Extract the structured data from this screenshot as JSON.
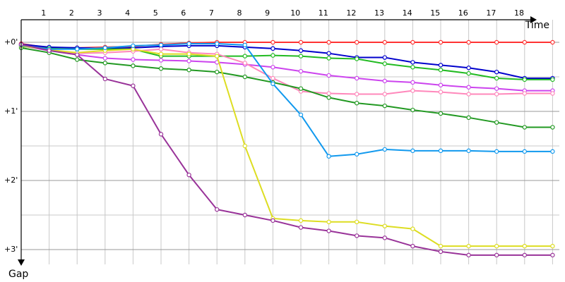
{
  "chart_data": {
    "type": "line",
    "xlabel": "Time",
    "ylabel": "Gap",
    "x_ticks": [
      "1",
      "2",
      "3",
      "4",
      "5",
      "6",
      "7",
      "8",
      "9",
      "10",
      "11",
      "12",
      "13",
      "14",
      "15",
      "16",
      "17",
      "18"
    ],
    "y_ticks": [
      "+0'",
      "+1'",
      "+2'",
      "+3'"
    ],
    "ylim": [
      0,
      3.2
    ],
    "xlim": [
      0,
      19.2
    ],
    "grid": true,
    "series": [
      {
        "color": "#ff3333",
        "x": [
          0,
          1,
          2,
          3,
          4,
          5,
          6,
          7,
          8,
          9,
          10,
          11,
          12,
          13,
          14,
          15,
          16,
          17,
          18,
          19
        ],
        "y": [
          0.02,
          0.08,
          0.08,
          0.07,
          0.06,
          0.03,
          0.01,
          0,
          0,
          0,
          0,
          0,
          0,
          0,
          0,
          0,
          0,
          0,
          0,
          0
        ]
      },
      {
        "color": "#0000cc",
        "x": [
          0,
          1,
          2,
          3,
          4,
          5,
          6,
          7,
          8,
          9,
          10,
          11,
          12,
          13,
          14,
          15,
          16,
          17,
          18,
          19
        ],
        "y": [
          0.03,
          0.07,
          0.08,
          0.09,
          0.08,
          0.06,
          0.05,
          0.05,
          0.07,
          0.09,
          0.12,
          0.16,
          0.22,
          0.22,
          0.29,
          0.33,
          0.37,
          0.43,
          0.52,
          0.52
        ]
      },
      {
        "color": "#22bb22",
        "x": [
          0,
          1,
          2,
          3,
          4,
          5,
          6,
          7,
          8,
          9,
          10,
          11,
          12,
          13,
          14,
          15,
          16,
          17,
          18,
          19
        ],
        "y": [
          0.06,
          0.09,
          0.1,
          0.1,
          0.1,
          0.2,
          0.2,
          0.2,
          0.2,
          0.19,
          0.2,
          0.23,
          0.24,
          0.31,
          0.36,
          0.4,
          0.45,
          0.52,
          0.54,
          0.54
        ]
      },
      {
        "color": "#cc44ee",
        "x": [
          0,
          1,
          2,
          3,
          4,
          5,
          6,
          7,
          8,
          9,
          10,
          11,
          12,
          13,
          14,
          15,
          16,
          17,
          18,
          19
        ],
        "y": [
          0.05,
          0.12,
          0.18,
          0.23,
          0.25,
          0.26,
          0.27,
          0.29,
          0.32,
          0.36,
          0.42,
          0.48,
          0.52,
          0.56,
          0.58,
          0.62,
          0.65,
          0.67,
          0.7,
          0.7
        ]
      },
      {
        "color": "#ff88bb",
        "x": [
          0,
          1,
          2,
          3,
          4,
          5,
          6,
          7,
          8,
          9,
          10,
          11,
          12,
          13,
          14,
          15,
          16,
          17,
          18,
          19
        ],
        "y": [
          0.04,
          0.11,
          0.16,
          0.15,
          0.13,
          0.1,
          0.15,
          0.17,
          0.3,
          0.52,
          0.71,
          0.74,
          0.75,
          0.75,
          0.7,
          0.72,
          0.75,
          0.75,
          0.74,
          0.74
        ]
      },
      {
        "color": "#229922",
        "x": [
          0,
          1,
          2,
          3,
          4,
          5,
          6,
          7,
          8,
          9,
          10,
          11,
          12,
          13,
          14,
          15,
          16,
          17,
          18,
          19
        ],
        "y": [
          0.08,
          0.15,
          0.25,
          0.3,
          0.34,
          0.38,
          0.4,
          0.43,
          0.5,
          0.58,
          0.67,
          0.8,
          0.88,
          0.92,
          0.98,
          1.03,
          1.09,
          1.16,
          1.23,
          1.23
        ]
      },
      {
        "color": "#dddd22",
        "x": [
          0,
          1,
          2,
          3,
          4,
          5,
          6,
          7,
          8,
          9,
          10,
          11,
          12,
          13,
          14,
          15,
          16,
          17,
          18,
          19
        ],
        "y": [
          0.05,
          0.11,
          0.15,
          0.12,
          0.1,
          0.17,
          0.17,
          0.2,
          1.5,
          2.55,
          2.58,
          2.6,
          2.6,
          2.66,
          2.7,
          2.95,
          2.95,
          2.95,
          2.95,
          2.95
        ]
      },
      {
        "color": "#1199ee",
        "x": [
          0,
          1,
          2,
          3,
          4,
          5,
          6,
          7,
          8,
          9,
          10,
          11,
          12,
          13,
          14,
          15,
          16,
          17,
          18,
          19
        ],
        "y": [
          0.04,
          0.1,
          0.1,
          0.08,
          0.05,
          0.04,
          0.02,
          0.02,
          0.04,
          0.6,
          1.05,
          1.65,
          1.62,
          1.55,
          1.57,
          1.57,
          1.57,
          1.58,
          1.58,
          1.58
        ]
      },
      {
        "color": "#993399",
        "x": [
          0,
          1,
          2,
          3,
          4,
          5,
          6,
          7,
          8,
          9,
          10,
          11,
          12,
          13,
          14,
          15,
          16,
          17,
          18,
          19
        ],
        "y": [
          0.03,
          0.12,
          0.18,
          0.53,
          0.63,
          1.33,
          1.92,
          2.42,
          2.5,
          2.58,
          2.68,
          2.73,
          2.8,
          2.83,
          2.95,
          3.03,
          3.08,
          3.08,
          3.08,
          3.08
        ]
      }
    ]
  }
}
